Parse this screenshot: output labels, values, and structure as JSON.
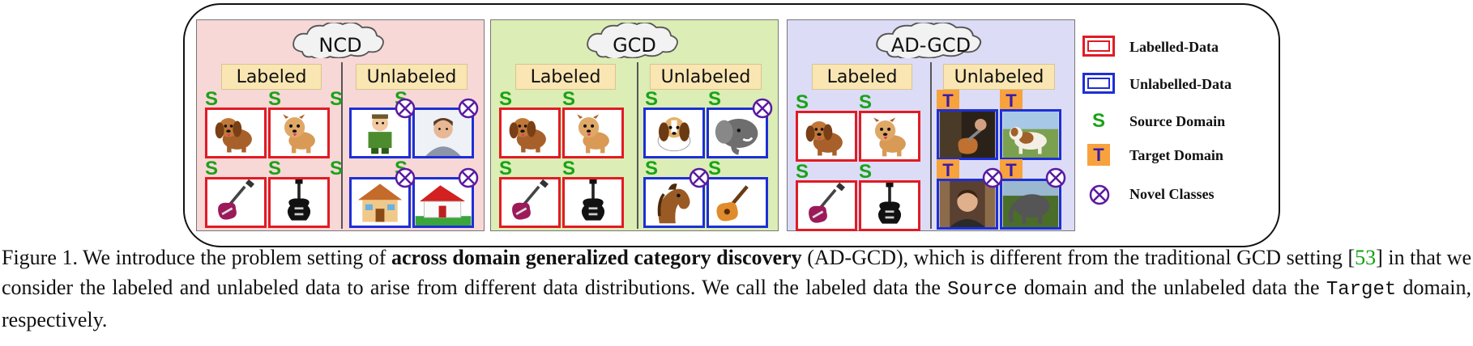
{
  "panels": {
    "ncd": {
      "title": "NCD",
      "labeled": "Labeled",
      "unlabeled": "Unlabeled"
    },
    "gcd": {
      "title": "GCD",
      "labeled": "Labeled",
      "unlabeled": "Unlabeled"
    },
    "adgcd": {
      "title": "AD-GCD",
      "labeled": "Labeled",
      "unlabeled": "Unlabeled"
    }
  },
  "marks": {
    "source": "S",
    "target": "T"
  },
  "legend": {
    "labelled": "Labelled-Data",
    "unlabelled": "Unlabelled-Data",
    "source": "Source Domain",
    "target": "Target Domain",
    "novel": "Novel Classes"
  },
  "colors": {
    "labelled_border": "#e11b24",
    "unlabelled_border": "#1d2fd6",
    "source_mark": "#19a317",
    "target_mark_bg": "#f7a23d"
  },
  "caption": {
    "prefix": "Figure 1.  We introduce the problem setting of ",
    "bold": "across domain generalized category discovery",
    "middle": " (AD-GCD), which is different from the traditional GCD setting [",
    "cite": "53",
    "after_cite": "] in that we consider the labeled and unlabeled data to arise from different data distributions. We call the labeled data the ",
    "source_word": "Source",
    "between": " domain and the unlabeled data the ",
    "target_word": "Target",
    "suffix": " domain, respectively."
  }
}
